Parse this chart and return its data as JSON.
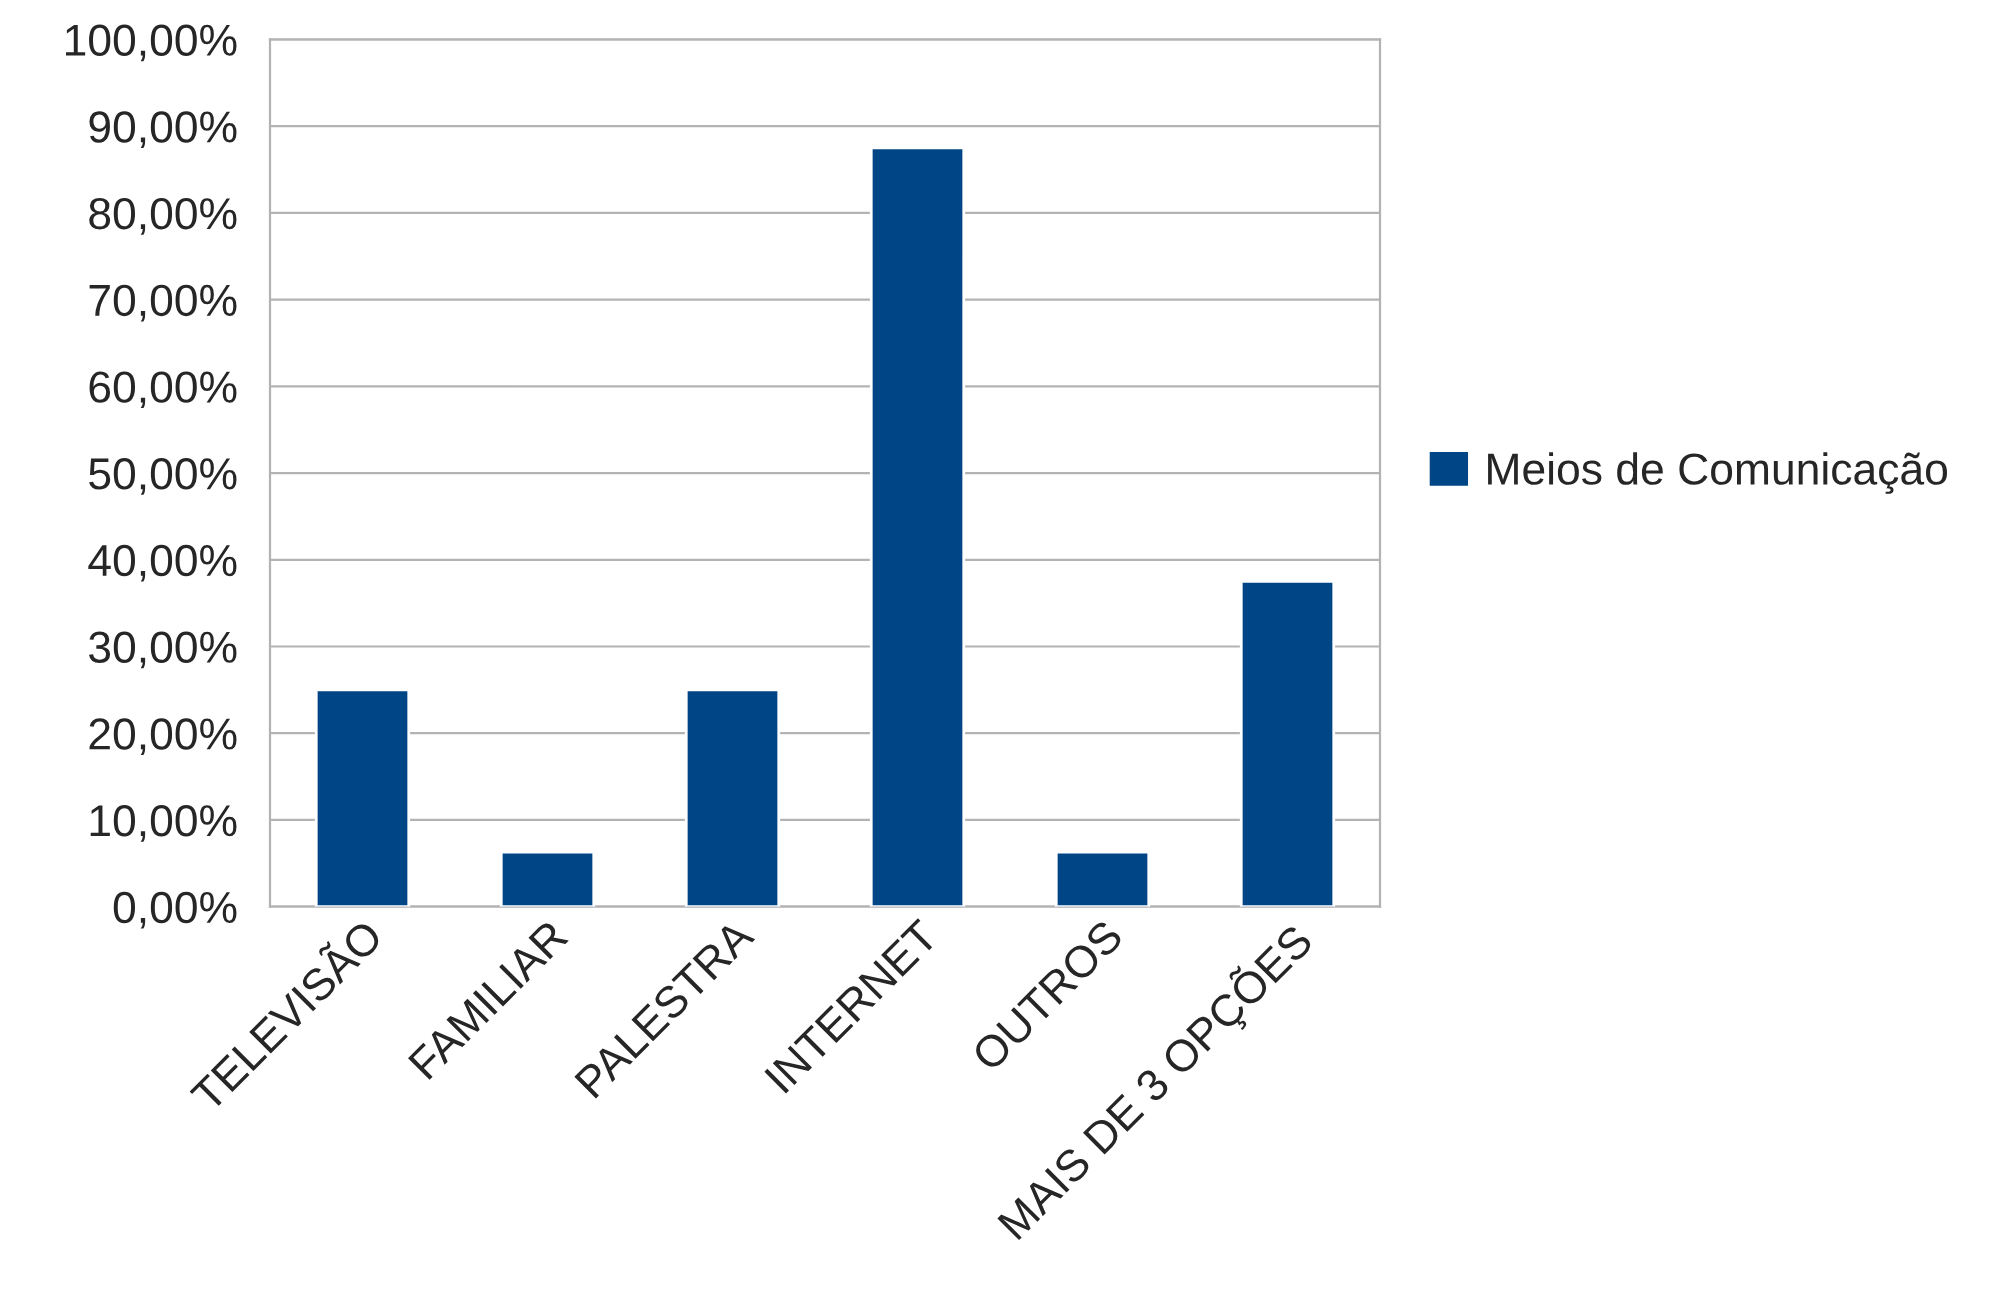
{
  "chart_data": {
    "type": "bar",
    "categories": [
      "TELEVISÃO",
      "FAMILIAR",
      "PALESTRA",
      "INTERNET",
      "OUTROS",
      "MAIS DE 3 OPÇÕES"
    ],
    "series": [
      {
        "name": "Meios de Comunicação",
        "color": "#004586",
        "values": [
          25,
          6.3,
          25,
          87.5,
          6.3,
          37.5
        ]
      }
    ],
    "ylim": [
      0,
      100
    ],
    "yticks": [
      {
        "value": 0,
        "label": "0,00%"
      },
      {
        "value": 10,
        "label": "10,00%"
      },
      {
        "value": 20,
        "label": "20,00%"
      },
      {
        "value": 30,
        "label": "30,00%"
      },
      {
        "value": 40,
        "label": "40,00%"
      },
      {
        "value": 50,
        "label": "50,00%"
      },
      {
        "value": 60,
        "label": "60,00%"
      },
      {
        "value": 70,
        "label": "70,00%"
      },
      {
        "value": 80,
        "label": "80,00%"
      },
      {
        "value": 90,
        "label": "90,00%"
      },
      {
        "value": 100,
        "label": "100,00%"
      }
    ],
    "grid": "y",
    "legend": "right"
  }
}
